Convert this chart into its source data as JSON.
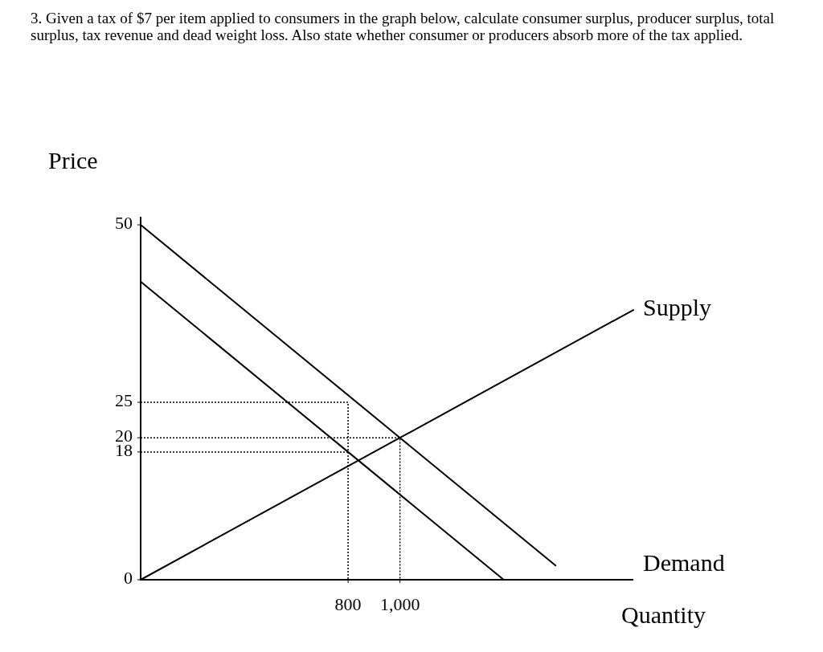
{
  "chart_data": {
    "type": "line",
    "title": "3. Given a tax of $7 per item applied to consumers in the graph below, calculate consumer surplus, producer surplus, total surplus, tax revenue and dead weight loss. Also state whether consumer or producers absorb more of the tax applied.",
    "xlabel": "Quantity",
    "ylabel": "Price",
    "xlim": [
      0,
      1900
    ],
    "ylim": [
      0,
      50
    ],
    "xticks": [
      800,
      {
        "value": 1000,
        "label": "1,000"
      }
    ],
    "yticks": [
      0,
      18,
      20,
      25,
      50
    ],
    "grid": false,
    "legend": false,
    "marker": "none",
    "line_style": "solid",
    "series": [
      {
        "name": "Supply",
        "color": "#000000",
        "x": [
          0,
          1000,
          1900
        ],
        "values": [
          0,
          20,
          38
        ]
      },
      {
        "name": "Demand",
        "color": "#000000",
        "x": [
          0,
          1000,
          1600
        ],
        "values": [
          50,
          20,
          2
        ]
      },
      {
        "color": "#000000",
        "x": [
          0,
          800,
          1400
        ],
        "values": [
          42,
          18,
          0
        ]
      },
      {
        "color": "#000000",
        "line_style": "dotted",
        "x": [
          0,
          800,
          800
        ],
        "values": [
          25,
          25,
          0
        ]
      },
      {
        "color": "#000000",
        "line_style": "dotted",
        "x": [
          0,
          1000,
          1000
        ],
        "values": [
          20,
          20,
          0
        ]
      },
      {
        "color": "#000000",
        "line_style": "dotted",
        "x": [
          0,
          800
        ],
        "values": [
          18,
          18
        ]
      }
    ]
  }
}
